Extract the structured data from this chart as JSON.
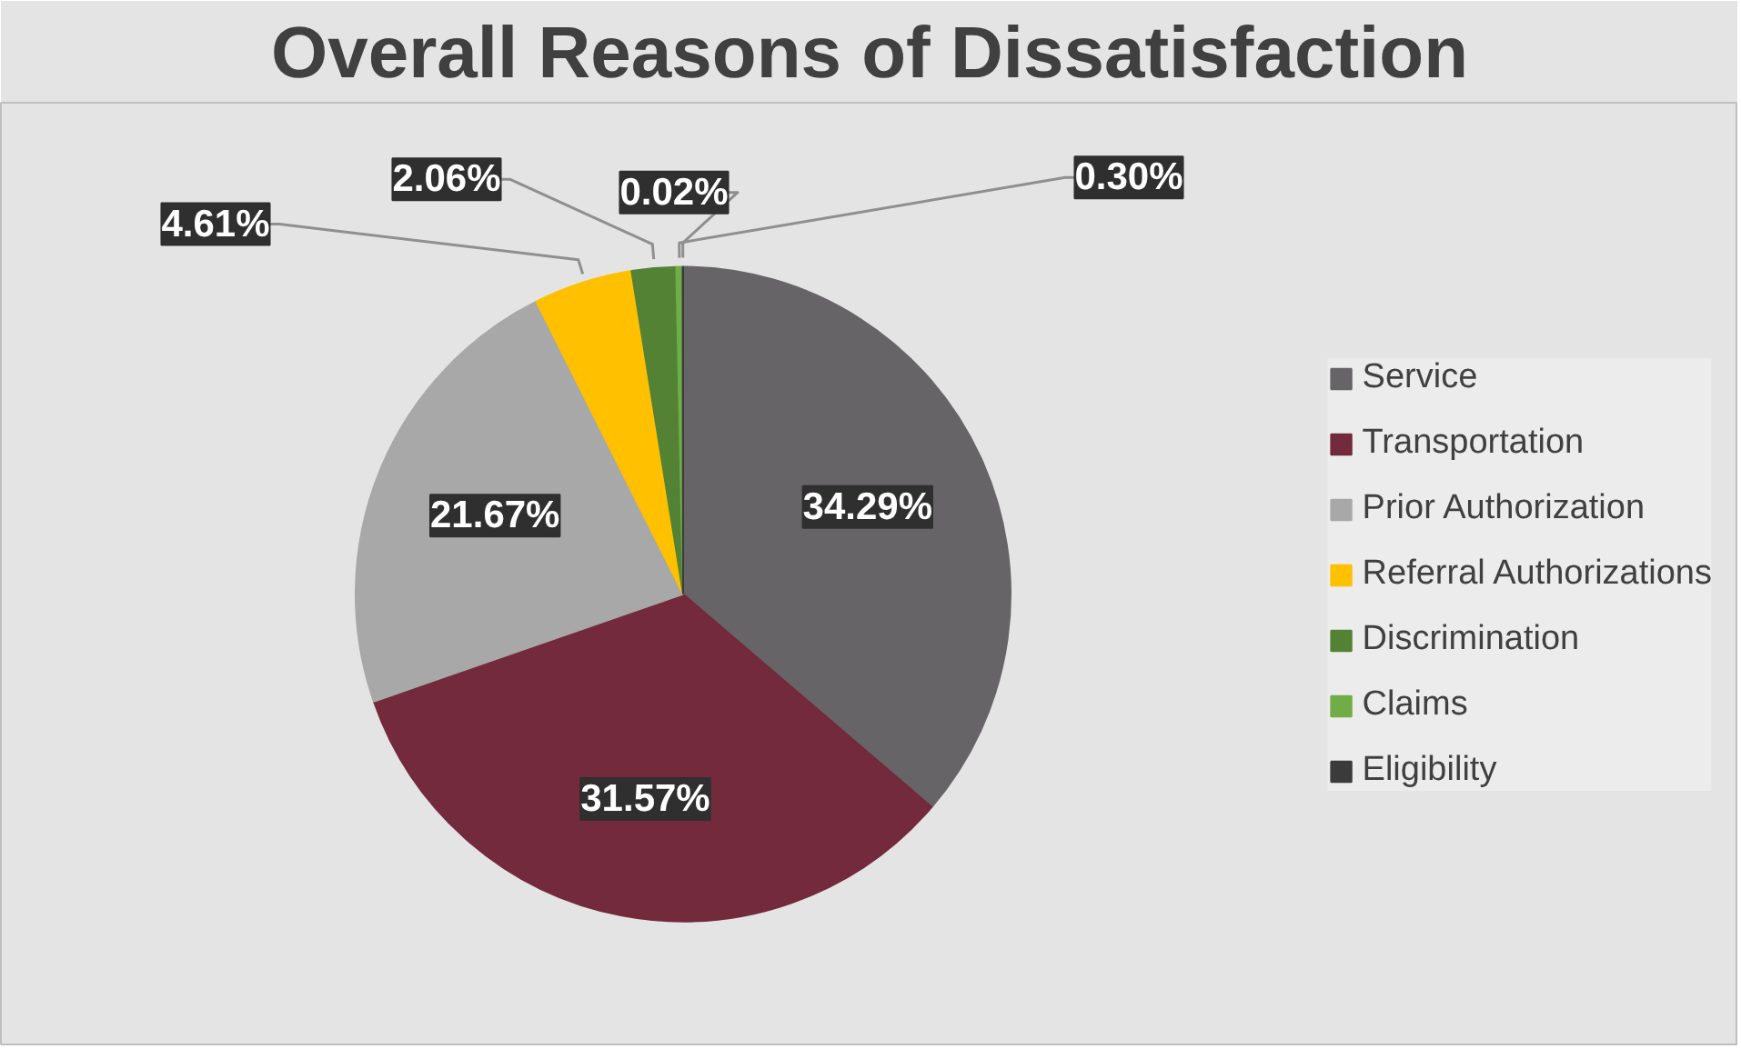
{
  "chart_data": {
    "type": "pie",
    "title": "Overall Reasons of Dissatisfaction",
    "categories": [
      "Service",
      "Transportation",
      "Prior Authorization",
      "Referral Authorizations",
      "Discrimination",
      "Claims",
      "Eligibility"
    ],
    "values": [
      34.29,
      31.57,
      21.67,
      4.61,
      2.06,
      0.3,
      0.02
    ],
    "colors": [
      "#676467",
      "#722a3c",
      "#a8a8a8",
      "#ffc000",
      "#548235",
      "#70ad47",
      "#3b3b3b"
    ],
    "value_labels": [
      "34.29%",
      "31.57%",
      "21.67%",
      "4.61%",
      "2.06%",
      "0.30%",
      "0.02%"
    ],
    "legend": "right"
  }
}
